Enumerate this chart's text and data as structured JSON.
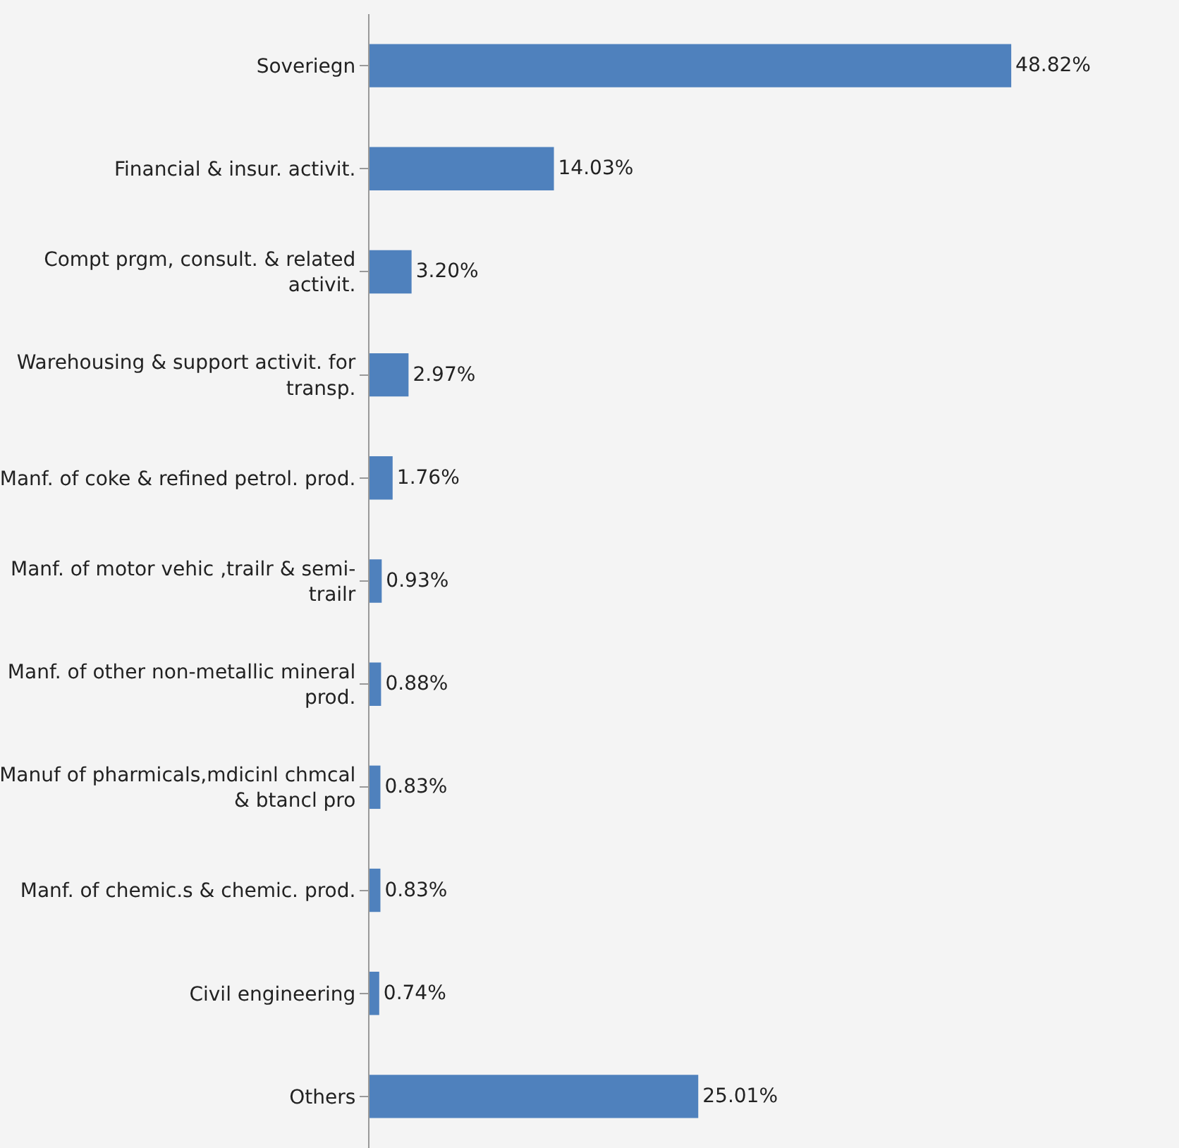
{
  "chart_data": {
    "type": "bar",
    "orientation": "horizontal",
    "categories": [
      "Soveriegn",
      "Financial & insur. activit.",
      "Compt prgm, consult. & related activit.",
      "Warehousing & support activit. for transp.",
      "Manf. of coke & refined petrol. prod.",
      "Manf. of motor vehic ,trailr & semi-\ntrailr",
      "Manf. of other non-metallic mineral prod.",
      "Manuf of pharmicals,mdicinl chmcal\n& btancl pro",
      "Manf. of chemic.s & chemic. prod.",
      "Civil engineering",
      "Others"
    ],
    "values": [
      48.82,
      14.03,
      3.2,
      2.97,
      1.76,
      0.93,
      0.88,
      0.83,
      0.83,
      0.74,
      25.01
    ],
    "value_labels": [
      "48.82%",
      "14.03%",
      "3.20%",
      "2.97%",
      "1.76%",
      "0.93%",
      "0.88%",
      "0.83%",
      "0.83%",
      "0.74%",
      "25.01%"
    ],
    "color": "#4f81bd"
  }
}
